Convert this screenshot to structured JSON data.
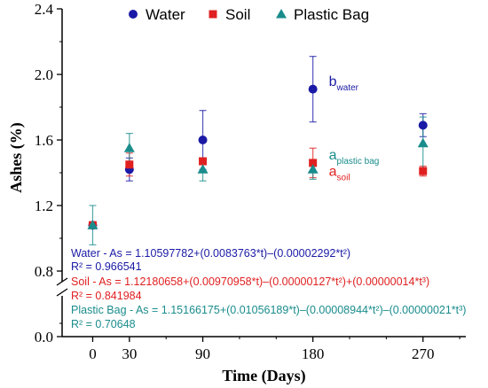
{
  "chart_data": {
    "type": "scatter",
    "x": [
      0,
      30,
      90,
      180,
      270
    ],
    "xlabel": "Time (Days)",
    "ylabel": "Ashes (%)",
    "xlim": [
      -25,
      305
    ],
    "ylim": [
      0.0,
      2.4
    ],
    "y_axis_break": [
      0.8,
      0.8
    ],
    "x_tick_labels": [
      "0",
      "30",
      "90",
      "180",
      "270"
    ],
    "y_tick_labels_upper": [
      "0.8",
      "1.2",
      "1.6",
      "2.0",
      "2.4"
    ],
    "y_tick_labels_lower": [
      "0.0"
    ],
    "legend_position": "top",
    "grid": false,
    "series": [
      {
        "name": "Water",
        "color": "#1a1aa6",
        "marker": "circle",
        "values": [
          1.08,
          1.42,
          1.6,
          1.91,
          1.69
        ],
        "errors": [
          0.0,
          0.07,
          0.18,
          0.2,
          0.07
        ]
      },
      {
        "name": "Soil",
        "color": "#e02020",
        "marker": "square",
        "values": [
          1.08,
          1.45,
          1.47,
          1.46,
          1.41
        ],
        "errors": [
          0.0,
          0.07,
          0.0,
          0.09,
          0.03
        ]
      },
      {
        "name": "Plastic Bag",
        "color": "#1a8c8c",
        "marker": "triangle",
        "values": [
          1.08,
          1.55,
          1.42,
          1.42,
          1.58
        ],
        "errors": [
          0.12,
          0.09,
          0.07,
          0.06,
          0.16
        ]
      }
    ],
    "annotations": [
      {
        "x": 180,
        "y": 1.93,
        "main": "b",
        "sub": "water",
        "color": "#1a1aa6"
      },
      {
        "x": 180,
        "y": 1.48,
        "main": "a",
        "sub": "plastic bag",
        "color": "#1a8c8c"
      },
      {
        "x": 180,
        "y": 1.38,
        "main": "a",
        "sub": "soil",
        "color": "#e02020"
      }
    ],
    "equations": [
      {
        "text": "Water - As = 1.10597782+(0.0083763*t)–(0.00002292*t²)",
        "color": "#1a1aa6"
      },
      {
        "text": "R² = 0.966541",
        "color": "#1a1aa6"
      },
      {
        "text": "Soil - As = 1.12180658+(0.00970958*t)–(0.00000127*t²)+(0.00000014*t³)",
        "color": "#e02020"
      },
      {
        "text": "R² = 0.841984",
        "color": "#e02020"
      },
      {
        "text": "Plastic Bag - As = 1.15166175+(0.01056189*t)–(0.00008944*t²)–(0.00000021*t³)",
        "color": "#1a8c8c"
      },
      {
        "text": "R² = 0.70648",
        "color": "#1a8c8c"
      }
    ]
  }
}
